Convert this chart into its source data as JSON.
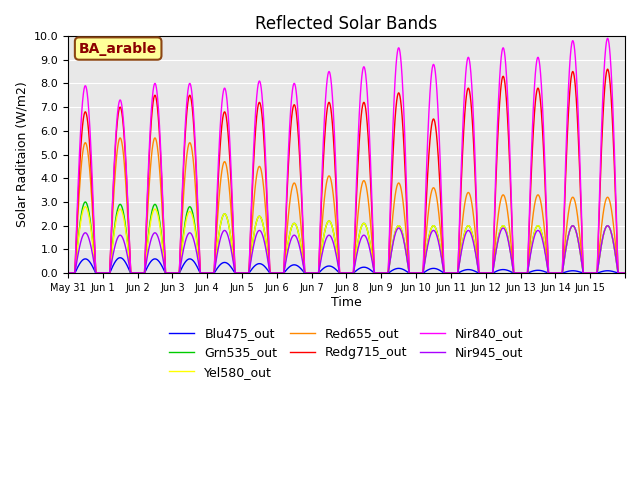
{
  "title": "Reflected Solar Bands",
  "xlabel": "Time",
  "ylabel": "Solar Raditaion (W/m2)",
  "annotation": "BA_arable",
  "ylim": [
    0.0,
    10.0
  ],
  "yticks": [
    0.0,
    1.0,
    2.0,
    3.0,
    4.0,
    5.0,
    6.0,
    7.0,
    8.0,
    9.0,
    10.0
  ],
  "xtick_positions": [
    0,
    1,
    2,
    3,
    4,
    5,
    6,
    7,
    8,
    9,
    10,
    11,
    12,
    13,
    14,
    15,
    16
  ],
  "xtick_labels": [
    "May 31",
    "Jun 1",
    "Jun 2",
    "Jun 3",
    "Jun 4",
    "Jun 5",
    "Jun 6",
    "Jun 7",
    "Jun 8",
    "Jun 9",
    "Jun 10",
    "Jun 11",
    "Jun 12",
    "Jun 13",
    "Jun 14",
    "Jun 15",
    ""
  ],
  "background_color": "#e8e8e8",
  "title_fontsize": 12,
  "legend_fontsize": 9,
  "annotation_bgcolor": "#ffff99",
  "annotation_edgecolor": "#8b4513",
  "annotation_textcolor": "#8b0000",
  "amplitudes": {
    "Blu475_out": [
      0.6,
      0.65,
      0.6,
      0.6,
      0.45,
      0.4,
      0.35,
      0.3,
      0.25,
      0.2,
      0.2,
      0.15,
      0.15,
      0.12,
      0.1,
      0.1
    ],
    "Grn535_out": [
      3.0,
      2.9,
      2.9,
      2.8,
      2.5,
      2.4,
      2.1,
      2.2,
      2.1,
      2.0,
      2.0,
      2.0,
      2.0,
      2.0,
      2.0,
      2.0
    ],
    "Yel580_out": [
      2.8,
      2.7,
      2.7,
      2.6,
      2.5,
      2.4,
      2.1,
      2.2,
      2.1,
      2.0,
      2.0,
      2.0,
      2.0,
      2.0,
      2.0,
      2.0
    ],
    "Red655_out": [
      5.5,
      5.7,
      5.7,
      5.5,
      4.7,
      4.5,
      3.8,
      4.1,
      3.9,
      3.8,
      3.6,
      3.4,
      3.3,
      3.3,
      3.2,
      3.2
    ],
    "Redg715_out": [
      6.8,
      7.0,
      7.5,
      7.5,
      6.8,
      7.2,
      7.1,
      7.2,
      7.2,
      7.6,
      6.5,
      7.8,
      8.3,
      7.8,
      8.5,
      8.6
    ],
    "Nir840_out": [
      7.9,
      7.3,
      8.0,
      8.0,
      7.8,
      8.1,
      8.0,
      8.5,
      8.7,
      9.5,
      8.8,
      9.1,
      9.5,
      9.1,
      9.8,
      9.9
    ],
    "Nir945_out": [
      1.7,
      1.6,
      1.7,
      1.7,
      1.8,
      1.8,
      1.6,
      1.6,
      1.6,
      1.9,
      1.8,
      1.8,
      1.9,
      1.8,
      2.0,
      2.0
    ]
  },
  "label_colors": {
    "Blu475_out": "#0000ff",
    "Grn535_out": "#00cc00",
    "Yel580_out": "#ffff00",
    "Red655_out": "#ff8800",
    "Redg715_out": "#ff0000",
    "Nir840_out": "#ff00ff",
    "Nir945_out": "#aa00ff"
  },
  "series_order": [
    "Blu475_out",
    "Grn535_out",
    "Yel580_out",
    "Red655_out",
    "Redg715_out",
    "Nir840_out",
    "Nir945_out"
  ]
}
